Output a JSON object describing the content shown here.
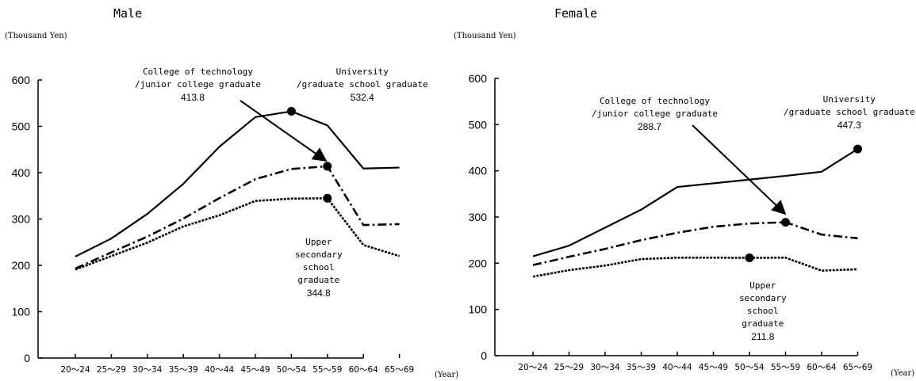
{
  "chart_data": [
    {
      "type": "line",
      "title": "Male",
      "ylabel": "(Thousand Yen)",
      "xlabel": "(Year)",
      "ylim": [
        0,
        600
      ],
      "yticks": [
        "0",
        "100",
        "200",
        "300",
        "400",
        "500",
        "600"
      ],
      "categories": [
        "20～24",
        "25～29",
        "30～34",
        "35～39",
        "40～44",
        "45～49",
        "50～54",
        "55～59",
        "60～64",
        "65～69"
      ],
      "series": [
        {
          "key": "university",
          "style": "solid",
          "values": [
            219,
            258,
            311,
            376,
            456,
            520,
            532.4,
            502,
            409,
            411
          ],
          "peak_index": 6,
          "label": "University\n/graduate school graduate",
          "peak_value": "532.4"
        },
        {
          "key": "college",
          "style": "dashdot",
          "values": [
            193,
            228,
            262,
            301,
            345,
            386,
            408,
            413.8,
            287,
            289
          ],
          "peak_index": 7,
          "label": "College of technology\n/junior college graduate",
          "peak_value": "413.8"
        },
        {
          "key": "upper",
          "style": "dotted",
          "values": [
            191,
            220,
            249,
            284,
            308,
            339,
            344,
            344.8,
            244,
            220
          ],
          "peak_index": 7,
          "label": "Upper\nsecondary\nschool\ngraduate",
          "peak_value": "344.8"
        }
      ]
    },
    {
      "type": "line",
      "title": "Female",
      "ylabel": "(Thousand Yen)",
      "xlabel": "(Year)",
      "ylim": [
        0,
        600
      ],
      "yticks": [
        "0",
        "100",
        "200",
        "300",
        "400",
        "500",
        "600"
      ],
      "categories": [
        "20～24",
        "25～29",
        "30～34",
        "35～39",
        "40～44",
        "45～49",
        "50～54",
        "55～59",
        "60～64",
        "65～69"
      ],
      "series": [
        {
          "key": "university",
          "style": "solid",
          "values": [
            215,
            238,
            277,
            316,
            365,
            373,
            381,
            389,
            398,
            447.3
          ],
          "peak_index": 9,
          "label": "University\n/graduate school graduate",
          "peak_value": "447.3"
        },
        {
          "key": "college",
          "style": "dashdot",
          "values": [
            196,
            214,
            231,
            250,
            266,
            279,
            286,
            288.7,
            262,
            254
          ],
          "peak_index": 7,
          "label": "College of technology\n/junior college graduate",
          "peak_value": "288.7"
        },
        {
          "key": "upper",
          "style": "dotted",
          "values": [
            171,
            185,
            195,
            209,
            212,
            212,
            211.8,
            212,
            184,
            187
          ],
          "peak_index": 6,
          "label": "Upper\nsecondary\nschool\ngraduate",
          "peak_value": "211.8"
        }
      ]
    }
  ]
}
